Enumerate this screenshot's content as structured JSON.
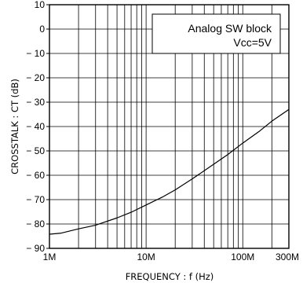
{
  "chart_data": {
    "type": "line",
    "xlabel": "FREQUENCY : f (Hz)",
    "ylabel": "CROSSTALK : CT (dB)",
    "x_scale": "log",
    "xlim": [
      1000000,
      300000000
    ],
    "ylim": [
      -90,
      10
    ],
    "grid": true,
    "x_ticks": [
      {
        "value": 1000000,
        "label": "1M"
      },
      {
        "value": 10000000,
        "label": "10M"
      },
      {
        "value": 100000000,
        "label": "100M"
      },
      {
        "value": 300000000,
        "label": "300M"
      }
    ],
    "y_ticks": [
      {
        "value": 10,
        "label": "10"
      },
      {
        "value": 0,
        "label": "0"
      },
      {
        "value": -10,
        "label": "− 10"
      },
      {
        "value": -20,
        "label": "− 20"
      },
      {
        "value": -30,
        "label": "− 30"
      },
      {
        "value": -40,
        "label": "− 40"
      },
      {
        "value": -50,
        "label": "− 50"
      },
      {
        "value": -60,
        "label": "− 60"
      },
      {
        "value": -70,
        "label": "− 70"
      },
      {
        "value": -80,
        "label": "− 80"
      },
      {
        "value": -90,
        "label": "− 90"
      }
    ],
    "annotation": {
      "line1": "Analog SW block",
      "line2": "Vcc=5V",
      "placement": "top-right"
    },
    "series": [
      {
        "x": [
          1000000,
          1300000,
          2000000,
          3000000,
          5000000,
          7000000,
          10000000,
          15000000,
          20000000,
          30000000,
          50000000,
          70000000,
          100000000,
          150000000,
          200000000,
          300000000
        ],
        "y": [
          -84.2,
          -83.8,
          -82,
          -80.5,
          -77.5,
          -75.2,
          -72.2,
          -68.8,
          -66,
          -61.5,
          -55.5,
          -51.5,
          -46.8,
          -41.8,
          -37.8,
          -33
        ]
      }
    ]
  }
}
